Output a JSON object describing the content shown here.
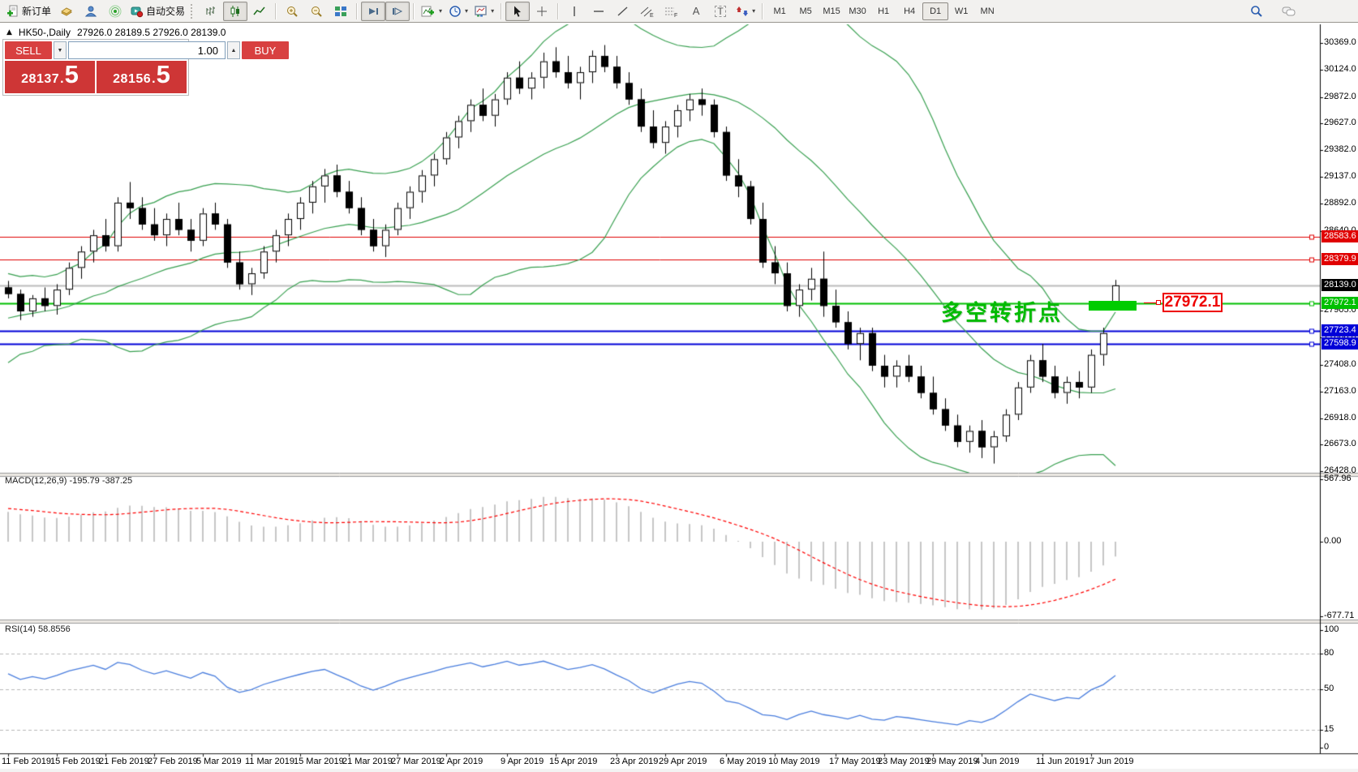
{
  "toolbar": {
    "new_order_label": "新订单",
    "autotrading_label": "自动交易",
    "timeframes": [
      "M1",
      "M5",
      "M15",
      "M30",
      "H1",
      "H4",
      "D1",
      "W1",
      "MN"
    ],
    "active_timeframe": "D1"
  },
  "icons": {
    "text_tool": "A",
    "label_tool": "T",
    "caret": "▾",
    "collapse_triangle": "▲"
  },
  "quote_panel": {
    "sell_label": "SELL",
    "buy_label": "BUY",
    "volume": "1.00",
    "sell_price": {
      "int": "28137",
      "frac": "5"
    },
    "buy_price": {
      "int": "28156",
      "frac": "5"
    }
  },
  "chart": {
    "title_symbol": "HK50-,Daily",
    "title_ohlc": "27926.0 28189.5 27926.0 28139.0",
    "price_ticks": [
      "30369.0",
      "30124.0",
      "29872.0",
      "29627.0",
      "29382.0",
      "29137.0",
      "28892.0",
      "28640.0",
      "27905.0",
      "27660.0",
      "27408.0",
      "27163.0",
      "26918.0",
      "26673.0",
      "26428.0"
    ],
    "levels": [
      {
        "label": "28583.6",
        "price": 28583.6,
        "color": "#e00000",
        "line_width": 1
      },
      {
        "label": "28379.9",
        "price": 28379.9,
        "color": "#e00000",
        "line_width": 1
      },
      {
        "label": "28139.0",
        "price": 28139.0,
        "color": "#bcbcbc",
        "label_bg": "#000000",
        "line_width": 2
      },
      {
        "label": "27972.1",
        "price": 27972.1,
        "color": "#00c000",
        "line_width": 2
      },
      {
        "label": "27723.4",
        "price": 27723.4,
        "color": "#0000d8",
        "line_width": 2
      },
      {
        "label": "27598.9",
        "price": 27598.9,
        "color": "#0000d8",
        "line_width": 2
      }
    ],
    "annotation": {
      "text": "多空转折点",
      "price_label": "27972.1"
    }
  },
  "macd": {
    "label": "MACD(12,26,9) -195.79 -387.25",
    "ticks": [
      {
        "label": "567.96",
        "value": 567.96
      },
      {
        "label": "0.00",
        "value": 0
      },
      {
        "label": "-677.71",
        "value": -677.71
      }
    ]
  },
  "rsi": {
    "label": "RSI(14) 58.8556",
    "ticks": [
      {
        "label": "100",
        "value": 100
      },
      {
        "label": "80",
        "value": 80
      },
      {
        "label": "50",
        "value": 50
      },
      {
        "label": "15",
        "value": 15
      },
      {
        "label": "0",
        "value": 0
      }
    ],
    "levels": [
      80,
      50,
      15
    ]
  },
  "colors": {
    "panel_red": "#ce3636",
    "button_red": "#d84040",
    "bull_candle": "#ffffff",
    "bear_candle": "#000000",
    "candle_border": "#000000",
    "bollinger": "#38a050",
    "macd_histogram": "#c6c6c6",
    "macd_signal": "#ff0000",
    "rsi_line": "#4a7ede",
    "rsi_level_dash": "#b8b8b8",
    "annotation_green": "#00bb00",
    "marker_green": "#00cc00",
    "annotation_box_red": "#ee0000"
  },
  "chart_data": {
    "type": "candlestick+indicators",
    "symbol": "HK50-",
    "period": "Daily",
    "ohlc_display": {
      "open": "27926.0",
      "high": "28189.5",
      "low": "27926.0",
      "close": "28139.0"
    },
    "y_axis": {
      "min": 26428,
      "max": 30369
    },
    "macd_axis": {
      "max": 567.96,
      "min": -677.71
    },
    "indicators": {
      "bollinger": "20,2",
      "macd": "12,26,9",
      "rsi": "14"
    },
    "date_ticks": [
      {
        "label": "11 Feb 2019",
        "index": 0
      },
      {
        "label": "15 Feb 2019",
        "index": 4
      },
      {
        "label": "21 Feb 2019",
        "index": 8
      },
      {
        "label": "27 Feb 2019",
        "index": 12
      },
      {
        "label": "5 Mar 2019",
        "index": 16
      },
      {
        "label": "11 Mar 2019",
        "index": 20
      },
      {
        "label": "15 Mar 2019",
        "index": 24
      },
      {
        "label": "21 Mar 2019",
        "index": 28
      },
      {
        "label": "27 Mar 2019",
        "index": 32
      },
      {
        "label": "2 Apr 2019",
        "index": 36
      },
      {
        "label": "9 Apr 2019",
        "index": 41
      },
      {
        "label": "15 Apr 2019",
        "index": 45
      },
      {
        "label": "23 Apr 2019",
        "index": 50
      },
      {
        "label": "29 Apr 2019",
        "index": 54
      },
      {
        "label": "6 May 2019",
        "index": 59
      },
      {
        "label": "10 May 2019",
        "index": 63
      },
      {
        "label": "17 May 2019",
        "index": 68
      },
      {
        "label": "23 May 2019",
        "index": 72
      },
      {
        "label": "29 May 2019",
        "index": 76
      },
      {
        "label": "4 Jun 2019",
        "index": 80
      },
      {
        "label": "11 Jun 2019",
        "index": 85
      },
      {
        "label": "17 Jun 2019",
        "index": 89
      }
    ],
    "candles": [
      [
        28120,
        28180,
        28020,
        28060
      ],
      [
        28060,
        28100,
        27820,
        27900
      ],
      [
        27900,
        28050,
        27850,
        28020
      ],
      [
        28020,
        28120,
        27900,
        27950
      ],
      [
        27950,
        28150,
        27870,
        28100
      ],
      [
        28100,
        28350,
        28050,
        28300
      ],
      [
        28300,
        28500,
        28200,
        28450
      ],
      [
        28450,
        28650,
        28350,
        28600
      ],
      [
        28600,
        28750,
        28450,
        28500
      ],
      [
        28500,
        28950,
        28450,
        28900
      ],
      [
        28900,
        29090,
        28750,
        28850
      ],
      [
        28850,
        28950,
        28650,
        28700
      ],
      [
        28700,
        28850,
        28550,
        28600
      ],
      [
        28600,
        28800,
        28500,
        28750
      ],
      [
        28750,
        28900,
        28600,
        28650
      ],
      [
        28650,
        28750,
        28450,
        28550
      ],
      [
        28550,
        28850,
        28500,
        28800
      ],
      [
        28800,
        28900,
        28650,
        28700
      ],
      [
        28700,
        28750,
        28300,
        28350
      ],
      [
        28350,
        28450,
        28100,
        28150
      ],
      [
        28150,
        28300,
        28050,
        28250
      ],
      [
        28250,
        28500,
        28200,
        28450
      ],
      [
        28450,
        28650,
        28350,
        28600
      ],
      [
        28600,
        28800,
        28500,
        28750
      ],
      [
        28750,
        28950,
        28650,
        28900
      ],
      [
        28900,
        29100,
        28800,
        29050
      ],
      [
        29050,
        29210,
        28900,
        29150
      ],
      [
        29150,
        29250,
        28950,
        29000
      ],
      [
        29000,
        29100,
        28800,
        28850
      ],
      [
        28850,
        28950,
        28600,
        28650
      ],
      [
        28650,
        28750,
        28450,
        28500
      ],
      [
        28500,
        28700,
        28400,
        28650
      ],
      [
        28650,
        28900,
        28600,
        28850
      ],
      [
        28850,
        29050,
        28750,
        29000
      ],
      [
        29000,
        29200,
        28900,
        29150
      ],
      [
        29150,
        29350,
        29050,
        29300
      ],
      [
        29300,
        29550,
        29250,
        29500
      ],
      [
        29500,
        29700,
        29400,
        29650
      ],
      [
        29650,
        29850,
        29550,
        29800
      ],
      [
        29800,
        29950,
        29650,
        29700
      ],
      [
        29700,
        29900,
        29600,
        29850
      ],
      [
        29850,
        30100,
        29800,
        30050
      ],
      [
        30050,
        30200,
        29900,
        29950
      ],
      [
        29950,
        30100,
        29850,
        30050
      ],
      [
        30050,
        30280,
        29950,
        30200
      ],
      [
        30200,
        30330,
        30050,
        30100
      ],
      [
        30100,
        30250,
        29950,
        30000
      ],
      [
        30000,
        30150,
        29850,
        30100
      ],
      [
        30100,
        30300,
        30000,
        30250
      ],
      [
        30250,
        30350,
        30100,
        30150
      ],
      [
        30150,
        30250,
        29950,
        30000
      ],
      [
        30000,
        30100,
        29800,
        29850
      ],
      [
        29850,
        29950,
        29550,
        29600
      ],
      [
        29600,
        29750,
        29400,
        29450
      ],
      [
        29450,
        29650,
        29350,
        29600
      ],
      [
        29600,
        29800,
        29500,
        29750
      ],
      [
        29750,
        29900,
        29650,
        29850
      ],
      [
        29850,
        29950,
        29700,
        29800
      ],
      [
        29800,
        29850,
        29500,
        29550
      ],
      [
        29550,
        29600,
        29100,
        29150
      ],
      [
        29150,
        29300,
        28950,
        29050
      ],
      [
        29050,
        29100,
        28700,
        28750
      ],
      [
        28750,
        28900,
        28300,
        28350
      ],
      [
        28350,
        28500,
        28150,
        28250
      ],
      [
        28250,
        28350,
        27900,
        27950
      ],
      [
        27950,
        28150,
        27850,
        28100
      ],
      [
        28100,
        28300,
        28000,
        28200
      ],
      [
        28200,
        28450,
        27850,
        27950
      ],
      [
        27950,
        28100,
        27750,
        27800
      ],
      [
        27800,
        27900,
        27550,
        27600
      ],
      [
        27600,
        27750,
        27450,
        27700
      ],
      [
        27700,
        27750,
        27350,
        27400
      ],
      [
        27400,
        27500,
        27200,
        27300
      ],
      [
        27300,
        27450,
        27200,
        27400
      ],
      [
        27400,
        27500,
        27250,
        27300
      ],
      [
        27300,
        27400,
        27100,
        27150
      ],
      [
        27150,
        27300,
        26950,
        27000
      ],
      [
        27000,
        27100,
        26800,
        26850
      ],
      [
        26850,
        26950,
        26650,
        26700
      ],
      [
        26700,
        26850,
        26600,
        26800
      ],
      [
        26800,
        26900,
        26550,
        26650
      ],
      [
        26650,
        26800,
        26500,
        26750
      ],
      [
        26750,
        27000,
        26700,
        26950
      ],
      [
        26950,
        27250,
        26900,
        27200
      ],
      [
        27200,
        27500,
        27150,
        27450
      ],
      [
        27450,
        27600,
        27250,
        27300
      ],
      [
        27300,
        27400,
        27100,
        27150
      ],
      [
        27150,
        27300,
        27050,
        27250
      ],
      [
        27250,
        27350,
        27100,
        27200
      ],
      [
        27200,
        27550,
        27150,
        27500
      ],
      [
        27500,
        27750,
        27400,
        27700
      ],
      [
        27926,
        28189.5,
        27926,
        28139
      ]
    ]
  }
}
